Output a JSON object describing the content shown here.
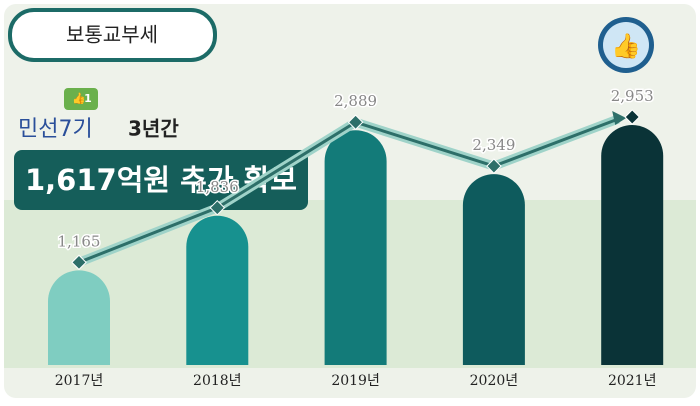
{
  "chart_data": {
    "type": "bar",
    "title": "보통교부세",
    "categories": [
      "2017년",
      "2018년",
      "2019년",
      "2020년",
      "2021년"
    ],
    "values": [
      1165,
      1836,
      2889,
      2349,
      2953
    ],
    "value_labels": [
      "1,165",
      "1,836",
      "2,889",
      "2,349",
      "2,953"
    ],
    "colors": [
      "#7fcdc1",
      "#17918f",
      "#137b79",
      "#0e5b5d",
      "#0a3337"
    ],
    "annotations": {
      "badge": "1",
      "term": "민선7기",
      "period": "3년간",
      "headline": "1,617억원 추가 확보"
    }
  }
}
